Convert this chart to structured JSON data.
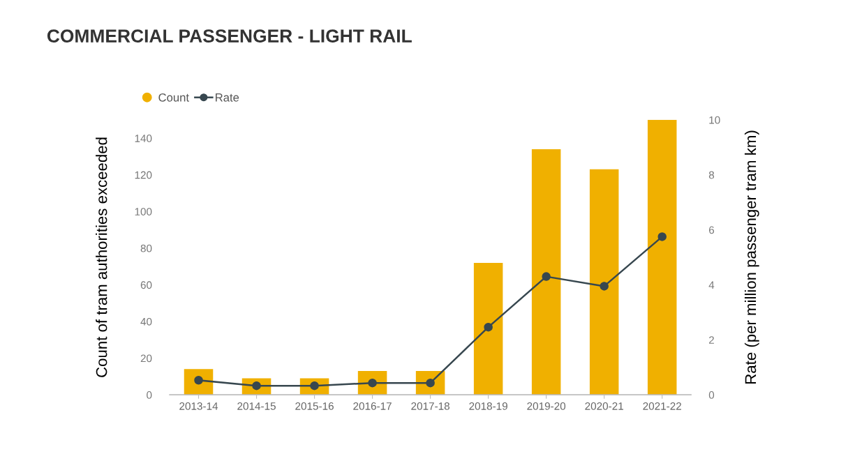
{
  "chart_data": {
    "type": "bar",
    "title": "COMMERCIAL PASSENGER - LIGHT RAIL",
    "ylabel": "Count of tram authorities exceeded",
    "y2label": "Rate (per million passenger tram km)",
    "categories": [
      "2013-14",
      "2014-15",
      "2015-16",
      "2016-17",
      "2017-18",
      "2018-19",
      "2019-20",
      "2020-21",
      "2021-22"
    ],
    "series": [
      {
        "name": "Count",
        "color": "#f0b000",
        "values": [
          14,
          9,
          9,
          13,
          13,
          72,
          134,
          123,
          150
        ]
      },
      {
        "name": "Rate",
        "type": "line",
        "axis": "y2",
        "color": "#37474f",
        "marker": "circle",
        "values": [
          0.53,
          0.33,
          0.33,
          0.43,
          0.43,
          2.46,
          4.3,
          3.95,
          5.75
        ]
      }
    ],
    "ylim": [
      0,
      150
    ],
    "yticks": [
      0,
      20,
      40,
      60,
      80,
      100,
      120,
      140
    ],
    "y2lim": [
      0,
      10
    ],
    "y2ticks": [
      0,
      2,
      4,
      6,
      8,
      10
    ],
    "grid": false,
    "legend": "top left"
  }
}
